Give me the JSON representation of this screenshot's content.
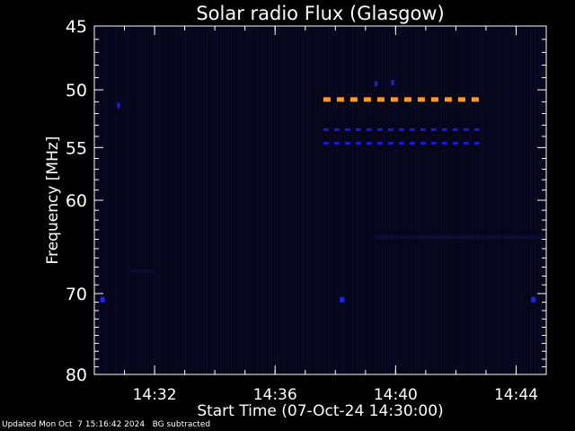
{
  "chart_data": {
    "type": "heatmap",
    "title": "Solar radio Flux (Glasgow)",
    "xlabel": "Start Time (07-Oct-24 14:30:00)",
    "ylabel": "Frequency [MHz]",
    "x_range_minutes": [
      0,
      15
    ],
    "x_ticks": [
      {
        "minute": 2,
        "label": "14:32"
      },
      {
        "minute": 6,
        "label": "14:36"
      },
      {
        "minute": 10,
        "label": "14:40"
      },
      {
        "minute": 14,
        "label": "14:44"
      }
    ],
    "y_range_mhz": [
      45,
      80
    ],
    "y_scale": "log",
    "y_ticks": [
      45,
      50,
      55,
      60,
      70,
      80
    ],
    "grid": false,
    "colors": {
      "background": "#000000",
      "plot_background": "#06061a",
      "axis": "#ffffff",
      "orange_band": "#ff9a1f",
      "blue_band": "#1010d8",
      "dim_stripe": "#0d0d38"
    },
    "features": [
      {
        "name": "orange-emission-band",
        "freq_mhz": 50.8,
        "t_start_min": 7.6,
        "t_end_min": 12.7,
        "color": "#ff9a1f",
        "dashed": true
      },
      {
        "name": "blue-band-upper",
        "freq_mhz": 53.4,
        "t_start_min": 7.6,
        "t_end_min": 12.7,
        "color": "#1818e0",
        "dashed": true
      },
      {
        "name": "blue-band-lower",
        "freq_mhz": 54.6,
        "t_start_min": 7.6,
        "t_end_min": 12.7,
        "color": "#1818e0",
        "dashed": true
      },
      {
        "name": "spot",
        "freq_mhz": 70.7,
        "t_start_min": 0.2,
        "t_end_min": 0.35,
        "color": "#2020ff"
      },
      {
        "name": "spot",
        "freq_mhz": 70.7,
        "t_start_min": 8.15,
        "t_end_min": 8.3,
        "color": "#2020ff"
      },
      {
        "name": "spot",
        "freq_mhz": 70.7,
        "t_start_min": 14.5,
        "t_end_min": 14.65,
        "color": "#2020ff"
      },
      {
        "name": "spot",
        "freq_mhz": 51.3,
        "t_start_min": 0.75,
        "t_end_min": 0.85,
        "color": "#2020c0"
      },
      {
        "name": "spot",
        "freq_mhz": 49.5,
        "t_start_min": 9.3,
        "t_end_min": 9.4,
        "color": "#2020c0"
      },
      {
        "name": "spot",
        "freq_mhz": 49.4,
        "t_start_min": 9.85,
        "t_end_min": 9.95,
        "color": "#2020c0"
      }
    ]
  },
  "footer": {
    "updated": "Updated Mon Oct  7 15:16:42 2024   BG subtracted"
  }
}
